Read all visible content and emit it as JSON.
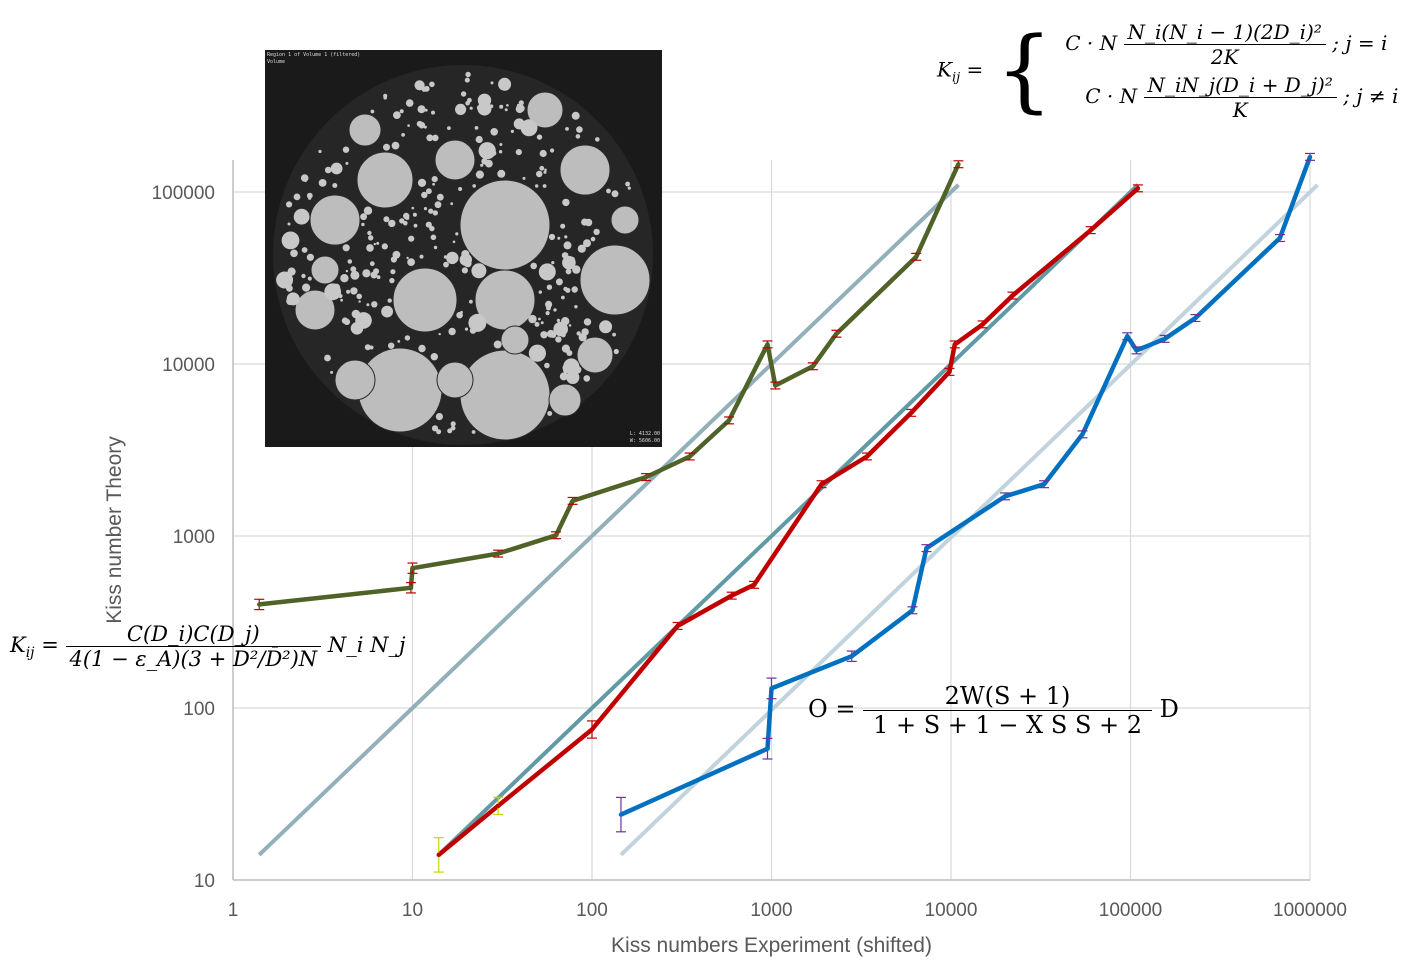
{
  "chart_data": {
    "type": "line",
    "xlabel": "Kiss numbers Experiment (shifted)",
    "ylabel": "Kiss number Theory",
    "xscale": "log",
    "yscale": "log",
    "xlim": [
      1,
      1000000
    ],
    "ylim": [
      10,
      200000
    ],
    "x_ticks": [
      "1",
      "10",
      "100",
      "1000",
      "10000",
      "100000",
      "1000000"
    ],
    "y_ticks": [
      "10",
      "100",
      "1000",
      "10000",
      "100000"
    ],
    "grid": true,
    "series": [
      {
        "color": "#4f6228",
        "points": [
          [
            1.4,
            400
          ],
          [
            9.8,
            500
          ],
          [
            10,
            650
          ],
          [
            30,
            790
          ],
          [
            63,
            1010
          ],
          [
            78,
            1600
          ],
          [
            200,
            2200
          ],
          [
            350,
            2900
          ],
          [
            580,
            4700
          ],
          [
            950,
            13000
          ],
          [
            1050,
            7500
          ],
          [
            1700,
            9700
          ],
          [
            2300,
            15000
          ],
          [
            6400,
            42000
          ],
          [
            11000,
            145000
          ]
        ],
        "error_y": [
          0.03,
          0.03,
          0.03,
          0.02,
          0.02,
          0.02,
          0.02,
          0.02,
          0.02,
          0.02,
          0.02,
          0.02,
          0.02,
          0.02,
          0.02
        ]
      },
      {
        "color": "#c00000",
        "points": [
          [
            14,
            14
          ],
          [
            30,
            27
          ],
          [
            100,
            75
          ],
          [
            300,
            300
          ],
          [
            600,
            450
          ],
          [
            800,
            520
          ],
          [
            1900,
            2000
          ],
          [
            3400,
            2900
          ],
          [
            6000,
            5200
          ],
          [
            9800,
            9000
          ],
          [
            10500,
            13000
          ],
          [
            15000,
            17000
          ],
          [
            22000,
            25000
          ],
          [
            60000,
            60000
          ],
          [
            110000,
            105000
          ]
        ],
        "error_y": [
          0.1,
          0.05,
          0.05,
          0.02,
          0.02,
          0.02,
          0.02,
          0.02,
          0.02,
          0.02,
          0.02,
          0.02,
          0.02,
          0.02,
          0.02
        ]
      },
      {
        "color": "#0070c0",
        "points": [
          [
            145,
            24
          ],
          [
            950,
            58
          ],
          [
            1000,
            130
          ],
          [
            2800,
            200
          ],
          [
            6100,
            370
          ],
          [
            7300,
            850
          ],
          [
            20000,
            1700
          ],
          [
            33000,
            2000
          ],
          [
            54000,
            3900
          ],
          [
            96000,
            14500
          ],
          [
            108000,
            12000
          ],
          [
            155000,
            14000
          ],
          [
            230000,
            18500
          ],
          [
            680000,
            54000
          ],
          [
            1000000,
            160000
          ]
        ],
        "error_y": [
          0.1,
          0.06,
          0.06,
          0.03,
          0.02,
          0.02,
          0.02,
          0.02,
          0.02,
          0.02,
          0.02,
          0.02,
          0.02,
          0.02,
          0.02
        ]
      }
    ],
    "trendlines": [
      {
        "color": "#93b0ba",
        "points": [
          [
            1.4,
            14
          ],
          [
            11000,
            110000
          ]
        ]
      },
      {
        "color": "#5f9aa5",
        "points": [
          [
            14,
            14
          ],
          [
            110000,
            110000
          ]
        ]
      },
      {
        "color": "#c1d3dc",
        "points": [
          [
            145,
            14
          ],
          [
            1100000,
            110000
          ]
        ]
      }
    ]
  },
  "equations": {
    "left": {
      "lhs": "K",
      "lhs_sub": "ij",
      "num": "C(D_i)C(D_j)",
      "den": "4(1 − ε_A)(3 + D²/D̄²)N",
      "tail": "N_i N_j"
    },
    "top": {
      "lhs": "K",
      "lhs_sub": "ij",
      "case1": {
        "prefix": "C · N",
        "num": "N_i(N_i − 1)(2D_i)²",
        "den": "2K",
        "cond": "; j = i"
      },
      "case2": {
        "prefix": "C · N",
        "num": "N_iN_j(D_i + D_j)²",
        "den": "K",
        "cond": "; j ≠ i"
      }
    },
    "right": {
      "lhs": "O",
      "num": "2W(S + 1)",
      "den": "1 + S + 1 − X S S + 2",
      "tail": "D"
    }
  },
  "inset": {
    "caption_top": "Region 1 of Volume 1 (filtered)",
    "caption_top2": "Volume",
    "caption_bottom": "L: 4132.00",
    "caption_bottom2": "W: 5606.00"
  }
}
